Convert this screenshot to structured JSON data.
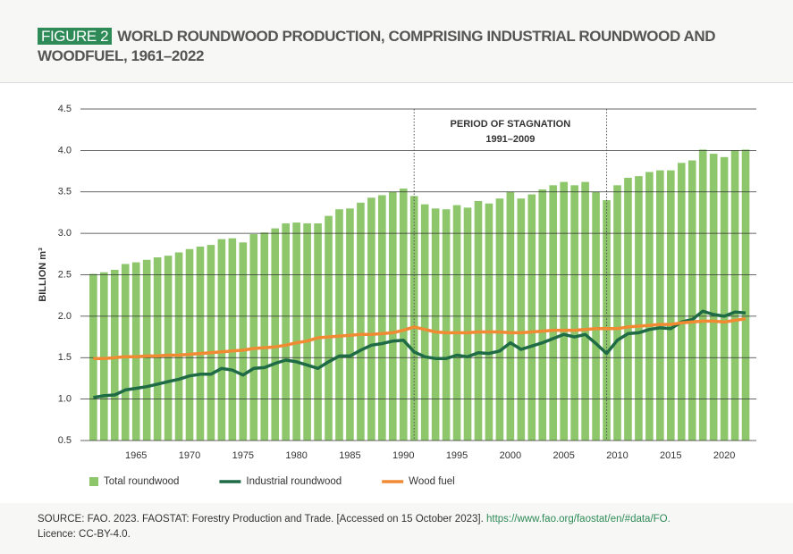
{
  "figure": "FIGURE 2",
  "source": {
    "text": "SOURCE: FAO. 2023. FAOSTAT: Forestry Production and Trade. [Accessed on 15 October 2023].",
    "url": "https://www.fao.org/faostat/en/#data/FO.",
    "licence": "Licence: CC-BY-4.0."
  },
  "chart_data": {
    "type": "bar",
    "title": "WORLD ROUNDWOOD PRODUCTION, COMPRISING INDUSTRIAL ROUNDWOOD AND WOODFUEL, 1961–2022",
    "ylabel": "BILLION m³",
    "x": [
      1961,
      1962,
      1963,
      1964,
      1965,
      1966,
      1967,
      1968,
      1969,
      1970,
      1971,
      1972,
      1973,
      1974,
      1975,
      1976,
      1977,
      1978,
      1979,
      1980,
      1981,
      1982,
      1983,
      1984,
      1985,
      1986,
      1987,
      1988,
      1989,
      1990,
      1991,
      1992,
      1993,
      1994,
      1995,
      1996,
      1997,
      1998,
      1999,
      2000,
      2001,
      2002,
      2003,
      2004,
      2005,
      2006,
      2007,
      2008,
      2009,
      2010,
      2011,
      2012,
      2013,
      2014,
      2015,
      2016,
      2017,
      2018,
      2019,
      2020,
      2021,
      2022
    ],
    "series": [
      {
        "name": "Total roundwood",
        "type": "bar",
        "color": "#8dc66b",
        "values": [
          2.51,
          2.53,
          2.56,
          2.63,
          2.65,
          2.68,
          2.71,
          2.73,
          2.77,
          2.81,
          2.84,
          2.86,
          2.93,
          2.94,
          2.89,
          2.99,
          3.01,
          3.06,
          3.12,
          3.13,
          3.12,
          3.12,
          3.21,
          3.29,
          3.3,
          3.37,
          3.43,
          3.46,
          3.5,
          3.54,
          3.45,
          3.35,
          3.3,
          3.29,
          3.34,
          3.31,
          3.39,
          3.36,
          3.42,
          3.5,
          3.42,
          3.47,
          3.53,
          3.58,
          3.62,
          3.58,
          3.62,
          3.5,
          3.4,
          3.58,
          3.67,
          3.69,
          3.74,
          3.76,
          3.76,
          3.85,
          3.88,
          4.01,
          3.96,
          3.92,
          4.0,
          4.01
        ]
      },
      {
        "name": "Industrial roundwood",
        "type": "line",
        "color": "#1e6b46",
        "values": [
          1.02,
          1.04,
          1.05,
          1.11,
          1.13,
          1.15,
          1.18,
          1.21,
          1.24,
          1.28,
          1.3,
          1.3,
          1.37,
          1.35,
          1.29,
          1.37,
          1.38,
          1.43,
          1.47,
          1.45,
          1.41,
          1.37,
          1.45,
          1.52,
          1.52,
          1.59,
          1.65,
          1.67,
          1.7,
          1.71,
          1.57,
          1.51,
          1.49,
          1.49,
          1.53,
          1.51,
          1.56,
          1.55,
          1.58,
          1.68,
          1.6,
          1.64,
          1.68,
          1.73,
          1.78,
          1.75,
          1.78,
          1.67,
          1.55,
          1.71,
          1.79,
          1.8,
          1.84,
          1.86,
          1.85,
          1.93,
          1.96,
          2.06,
          2.02,
          2.0,
          2.05,
          2.04
        ]
      },
      {
        "name": "Wood fuel",
        "type": "line",
        "color": "#f08a33",
        "values": [
          1.49,
          1.49,
          1.5,
          1.51,
          1.51,
          1.52,
          1.52,
          1.53,
          1.53,
          1.54,
          1.55,
          1.56,
          1.57,
          1.58,
          1.59,
          1.61,
          1.62,
          1.63,
          1.65,
          1.68,
          1.7,
          1.74,
          1.75,
          1.76,
          1.77,
          1.78,
          1.78,
          1.79,
          1.8,
          1.83,
          1.87,
          1.84,
          1.81,
          1.8,
          1.8,
          1.8,
          1.81,
          1.81,
          1.81,
          1.8,
          1.8,
          1.81,
          1.82,
          1.83,
          1.83,
          1.83,
          1.84,
          1.85,
          1.85,
          1.85,
          1.87,
          1.88,
          1.89,
          1.9,
          1.9,
          1.92,
          1.93,
          1.94,
          1.94,
          1.93,
          1.95,
          1.97
        ]
      }
    ],
    "xlim": [
      1959.8,
      2023
    ],
    "xticks": [
      1965,
      1970,
      1975,
      1980,
      1985,
      1990,
      1995,
      2000,
      2005,
      2010,
      2015,
      2020
    ],
    "ylim": [
      0.5,
      4.5
    ],
    "yticks": [
      0.5,
      {
        "value": 1,
        "label": "1.0"
      },
      1.5,
      {
        "value": 2,
        "label": "2.0"
      },
      2.5,
      {
        "value": 3,
        "label": "3.0"
      },
      3.5,
      {
        "value": 4,
        "label": "4.0"
      },
      4.5
    ],
    "grid": true,
    "legend": "bottom",
    "annotation": {
      "text": "PERIOD OF STAGNATION",
      "label": "1991–2009",
      "x": [
        1991,
        2009
      ]
    }
  }
}
